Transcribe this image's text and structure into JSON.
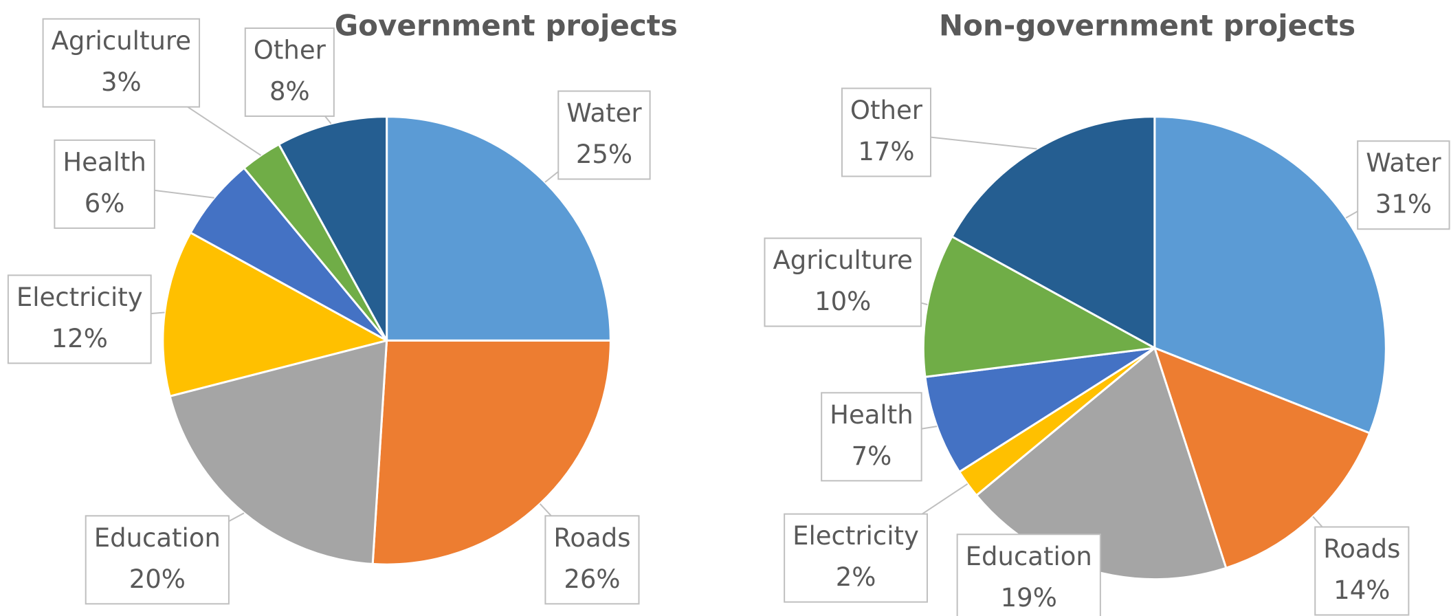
{
  "chart_data": [
    {
      "type": "pie",
      "title": "Government projects",
      "categories": [
        "Water",
        "Roads",
        "Education",
        "Electricity",
        "Health",
        "Agriculture",
        "Other"
      ],
      "values": [
        25,
        26,
        20,
        12,
        6,
        3,
        8
      ],
      "value_labels": [
        "25%",
        "26%",
        "20%",
        "12%",
        "6%",
        "3%",
        "8%"
      ],
      "colors": [
        "#5b9bd5",
        "#ed7d31",
        "#a5a5a5",
        "#ffc000",
        "#4472c4",
        "#70ad47",
        "#255e91"
      ]
    },
    {
      "type": "pie",
      "title": "Non-government projects",
      "categories": [
        "Water",
        "Roads",
        "Education",
        "Electricity",
        "Health",
        "Agriculture",
        "Other"
      ],
      "values": [
        31,
        14,
        19,
        2,
        7,
        10,
        17
      ],
      "value_labels": [
        "31%",
        "14%",
        "19%",
        "2%",
        "7%",
        "10%",
        "17%"
      ],
      "colors": [
        "#5b9bd5",
        "#ed7d31",
        "#a5a5a5",
        "#ffc000",
        "#4472c4",
        "#70ad47",
        "#255e91"
      ]
    }
  ]
}
